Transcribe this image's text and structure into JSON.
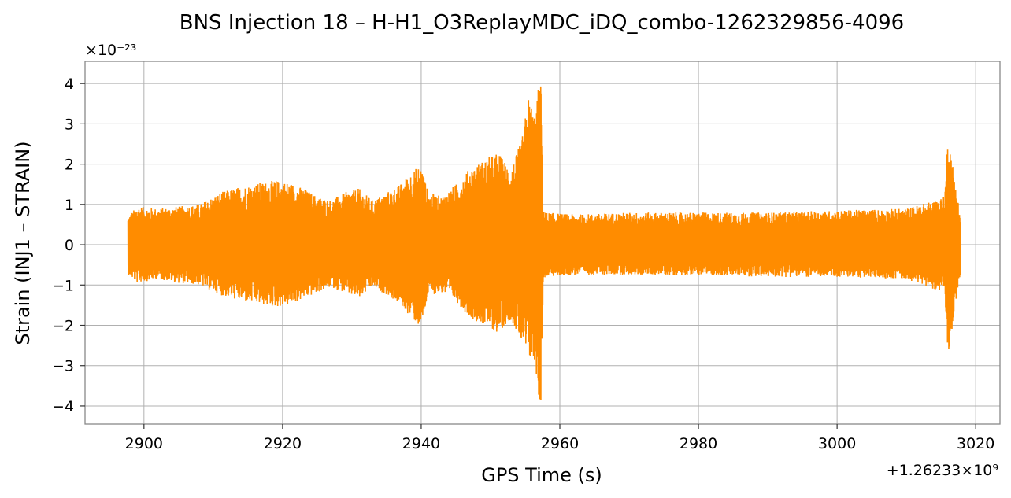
{
  "chart_data": {
    "type": "line",
    "title": "BNS Injection 18 – H-H1_O3ReplayMDC_iDQ_combo-1262329856-4096",
    "xlabel": "GPS Time (s)",
    "ylabel": "Strain (INJ1 – STRAIN)",
    "x_offset_label": "+1.26233×10⁹",
    "y_scale_label": "×10⁻²³",
    "xlim": [
      2891.5,
      3023.5
    ],
    "ylim": [
      -4.45,
      4.55
    ],
    "x_ticks": [
      2900,
      2920,
      2940,
      2960,
      2980,
      3000,
      3020
    ],
    "x_tick_labels": [
      "2900",
      "2920",
      "2940",
      "2960",
      "2980",
      "3000",
      "3020"
    ],
    "y_ticks": [
      -4,
      -3,
      -2,
      -1,
      0,
      1,
      2,
      3,
      4
    ],
    "y_tick_labels": [
      "−4",
      "−3",
      "−2",
      "−1",
      "0",
      "1",
      "2",
      "3",
      "4"
    ],
    "grid": true,
    "series_color": "#ff8c00",
    "data_start": 2897.7,
    "data_end": 3017.8,
    "series": [
      {
        "envelope": {
          "x": [
            2897.7,
            2899,
            2902,
            2905,
            2908,
            2911,
            2914,
            2917,
            2919,
            2921,
            2923,
            2925,
            2927,
            2929,
            2931,
            2933,
            2935,
            2937,
            2938.5,
            2940,
            2941,
            2943,
            2945,
            2947,
            2949,
            2951,
            2953,
            2954.5,
            2955.5,
            2956.5,
            2957,
            2957.3,
            2957.6,
            2958,
            2962,
            2970,
            2980,
            2990,
            3000,
            3010,
            3014,
            3015.5,
            3016,
            3017.8
          ],
          "upper": [
            0.7,
            0.95,
            0.9,
            0.95,
            1.0,
            1.3,
            1.45,
            1.55,
            1.6,
            1.55,
            1.4,
            1.2,
            1.1,
            1.3,
            1.4,
            1.1,
            1.3,
            1.5,
            1.8,
            2.0,
            1.3,
            1.2,
            1.5,
            1.9,
            2.1,
            2.3,
            1.9,
            2.6,
            3.7,
            3.2,
            4.1,
            4.0,
            1.0,
            0.8,
            0.75,
            0.8,
            0.8,
            0.8,
            0.85,
            0.9,
            1.1,
            1.2,
            2.8,
            0.7
          ],
          "lower": [
            -0.75,
            -0.95,
            -0.85,
            -0.95,
            -1.0,
            -1.25,
            -1.4,
            -1.5,
            -1.55,
            -1.5,
            -1.35,
            -1.2,
            -1.05,
            -1.2,
            -1.35,
            -1.05,
            -1.25,
            -1.5,
            -1.8,
            -2.1,
            -1.25,
            -1.2,
            -1.4,
            -1.8,
            -2.0,
            -2.2,
            -1.85,
            -2.5,
            -2.85,
            -3.0,
            -4.0,
            -3.9,
            -1.0,
            -0.8,
            -0.75,
            -0.75,
            -0.75,
            -0.8,
            -0.8,
            -0.85,
            -1.1,
            -1.2,
            -2.75,
            -0.7
          ]
        }
      }
    ]
  }
}
